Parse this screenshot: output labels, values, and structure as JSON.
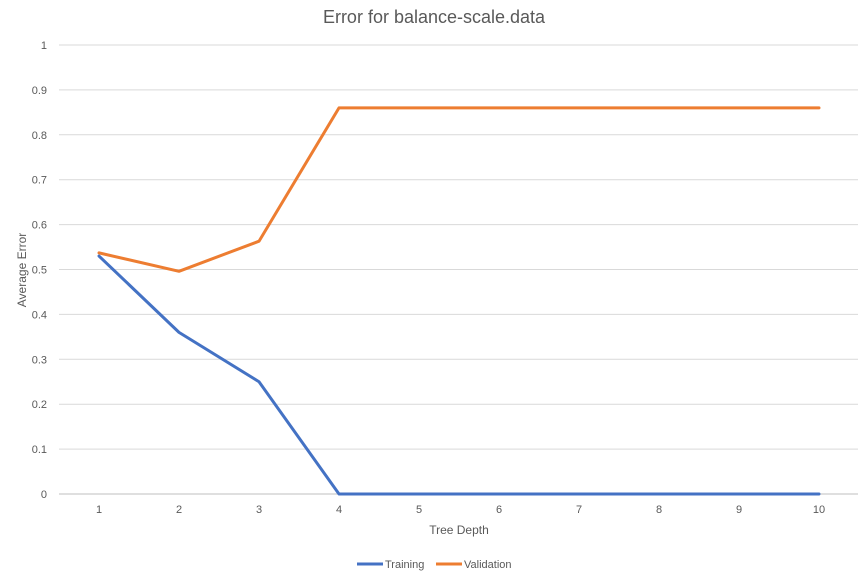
{
  "chart_data": {
    "type": "line",
    "title": "Error for balance-scale.data",
    "xlabel": "Tree Depth",
    "ylabel": "Average Error",
    "x": [
      1,
      2,
      3,
      4,
      5,
      6,
      7,
      8,
      9,
      10
    ],
    "x_tick_labels": [
      "1",
      "2",
      "3",
      "4",
      "5",
      "6",
      "7",
      "8",
      "9",
      "10"
    ],
    "ylim": [
      0,
      1
    ],
    "y_ticks": [
      0,
      0.1,
      0.2,
      0.3,
      0.4,
      0.5,
      0.6,
      0.7,
      0.8,
      0.9,
      1
    ],
    "y_tick_labels": [
      "0",
      "0.1",
      "0.2",
      "0.3",
      "0.4",
      "0.5",
      "0.6",
      "0.7",
      "0.8",
      "0.9",
      "1"
    ],
    "grid": true,
    "legend_position": "bottom",
    "series": [
      {
        "name": "Training",
        "color": "#4472C4",
        "values": [
          0.53,
          0.36,
          0.25,
          0,
          0,
          0,
          0,
          0,
          0,
          0
        ]
      },
      {
        "name": "Validation",
        "color": "#ED7D31",
        "values": [
          0.537,
          0.496,
          0.563,
          0.86,
          0.86,
          0.86,
          0.86,
          0.86,
          0.86,
          0.86
        ]
      }
    ]
  }
}
